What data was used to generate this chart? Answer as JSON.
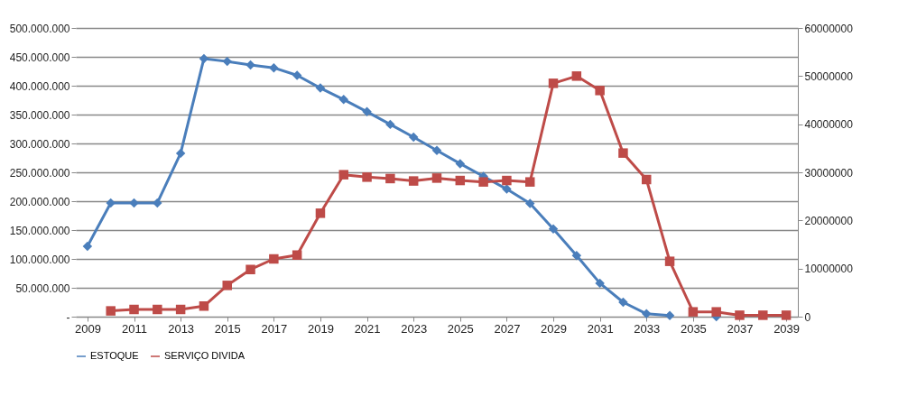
{
  "chart_data": {
    "type": "line",
    "categories": [
      "2009",
      null,
      "2011",
      null,
      "2013",
      null,
      "2015",
      null,
      "2017",
      null,
      "2019",
      null,
      "2021",
      null,
      "2023",
      null,
      "2025",
      null,
      "2027",
      null,
      "2029",
      null,
      "2031",
      null,
      "2033",
      null,
      "2035",
      null,
      "2037",
      null,
      "2039"
    ],
    "series": [
      {
        "name": "ESTOQUE",
        "color": "#4a7ebb",
        "marker": "diamond",
        "values": [
          122000000,
          197000000,
          197000000,
          197000000,
          283000000,
          447000000,
          442000000,
          436000000,
          431000000,
          418000000,
          396000000,
          376000000,
          355000000,
          333000000,
          311000000,
          288000000,
          265000000,
          243000000,
          221000000,
          196000000,
          152000000,
          106000000,
          58000000,
          25000000,
          5000000,
          2000000,
          null,
          0,
          null,
          null,
          null
        ]
      },
      {
        "name": "SERVIÇO DIVIDA",
        "color": "#be4b48",
        "marker": "square",
        "axis": "y2",
        "values": [
          null,
          1200000,
          1500000,
          1500000,
          1500000,
          2200000,
          6500000,
          9800000,
          12000000,
          12800000,
          21500000,
          29500000,
          29000000,
          28700000,
          28200000,
          28800000,
          28300000,
          28000000,
          28300000,
          28000000,
          48500000,
          50000000,
          47000000,
          34000000,
          28500000,
          11500000,
          1000000,
          1000000,
          300000,
          300000,
          300000
        ]
      }
    ],
    "ylim": [
      0,
      500000000
    ],
    "yticks": [
      {
        "value": 0,
        "label": "-"
      },
      {
        "value": 50000000,
        "label": "50.000.000"
      },
      {
        "value": 100000000,
        "label": "100.000.000"
      },
      {
        "value": 150000000,
        "label": "150.000.000"
      },
      {
        "value": 200000000,
        "label": "200.000.000"
      },
      {
        "value": 250000000,
        "label": "250.000.000"
      },
      {
        "value": 300000000,
        "label": "300.000.000"
      },
      {
        "value": 350000000,
        "label": "350.000.000"
      },
      {
        "value": 400000000,
        "label": "400.000.000"
      },
      {
        "value": 450000000,
        "label": "450.000.000"
      },
      {
        "value": 500000000,
        "label": "500.000.000"
      }
    ],
    "y2lim": [
      0,
      60000000
    ],
    "y2ticks": [
      0,
      10000000,
      20000000,
      30000000,
      40000000,
      50000000,
      60000000
    ],
    "grid": "y",
    "legend": "bottom",
    "line_style": "solid"
  }
}
